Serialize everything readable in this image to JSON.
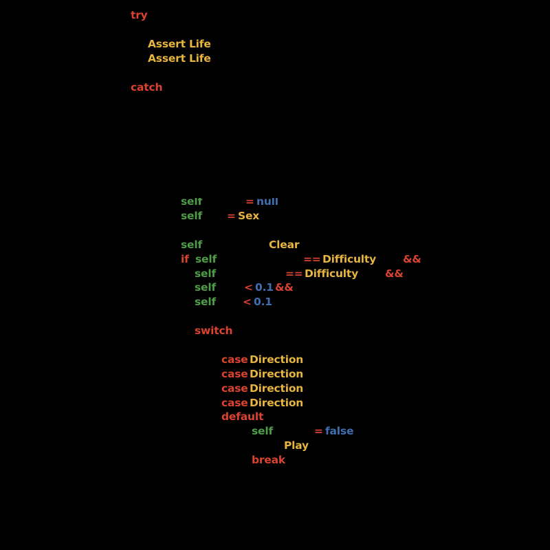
{
  "colors": {
    "keyword": "#d9432f",
    "type": "#e6b540",
    "self": "#4f9d48",
    "literal": "#3f6fb0",
    "background": "#000000"
  },
  "code": {
    "l1": {
      "try": "try"
    },
    "l2": {
      "text": "Assert Life"
    },
    "l3": {
      "text": "Assert Life"
    },
    "l4": {
      "catch": "catch"
    },
    "l5": {
      "self": "self",
      "op": "=",
      "val": "null"
    },
    "l6": {
      "self": "self",
      "op": "=",
      "val": "Sex"
    },
    "l7": {
      "self": "self",
      "val": "Clear"
    },
    "l8": {
      "if": "if",
      "self": "self",
      "op": "==",
      "val": "Difficulty",
      "and": "&&"
    },
    "l9": {
      "self": "self",
      "op": "==",
      "val": "Difficulty",
      "and": "&&"
    },
    "l10": {
      "self": "self",
      "op": "<",
      "val": "0.1",
      "and": "&&"
    },
    "l11": {
      "self": "self",
      "op": "<",
      "val": "0.1"
    },
    "l12": {
      "switch": "switch"
    },
    "cases": [
      {
        "case": "case",
        "val": "Direction"
      },
      {
        "case": "case",
        "val": "Direction"
      },
      {
        "case": "case",
        "val": "Direction"
      },
      {
        "case": "case",
        "val": "Direction"
      }
    ],
    "l17": {
      "default": "default"
    },
    "l18": {
      "self": "self",
      "op": "=",
      "val": "false"
    },
    "l19": {
      "val": "Play"
    },
    "l20": {
      "break": "break"
    }
  }
}
